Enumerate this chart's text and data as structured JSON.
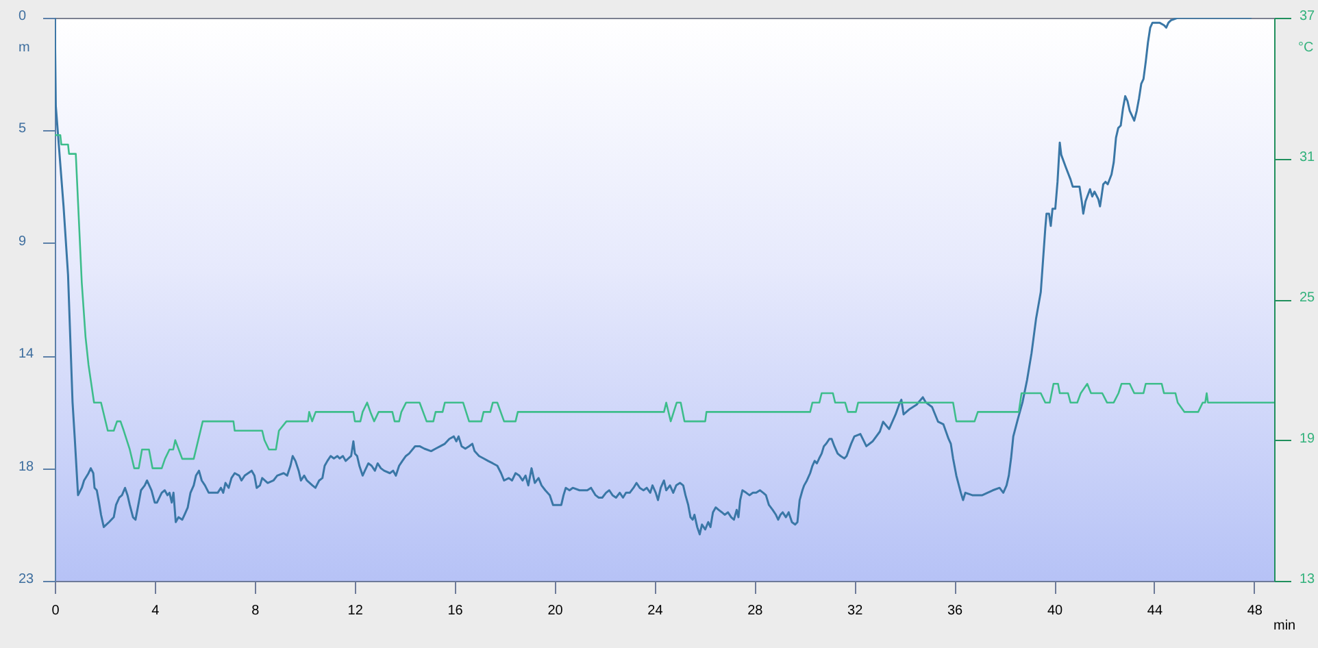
{
  "chart_data": {
    "type": "line",
    "xlabel": "min",
    "ylabel": "m",
    "y2label": "°C",
    "xlim": [
      0,
      48.8
    ],
    "xticks": [
      0,
      4,
      8,
      12,
      16,
      20,
      24,
      28,
      32,
      36,
      40,
      44,
      48
    ],
    "ylim": [
      23,
      0
    ],
    "yticks": [
      0,
      {
        "value": 4.6,
        "label": "5"
      },
      {
        "value": 9.2,
        "label": "9"
      },
      {
        "value": 13.8,
        "label": "14"
      },
      {
        "value": 18.4,
        "label": "18"
      },
      23
    ],
    "y2lim": [
      13,
      37
    ],
    "y2ticks": [
      13,
      19,
      25,
      31,
      37
    ],
    "series": [
      {
        "color": "#3a77a6",
        "x": [
          0,
          0.04,
          0.35,
          0.53,
          0.71,
          0.8,
          0.93,
          1.08,
          1.17,
          1.35,
          1.44,
          1.54,
          1.59,
          1.68,
          1.77,
          1.85,
          1.96,
          2.17,
          2.36,
          2.45,
          2.58,
          2.69,
          2.81,
          2.91,
          3.0,
          3.13,
          3.23,
          3.36,
          3.45,
          3.6,
          3.69,
          3.87,
          4.0,
          4.09,
          4.28,
          4.4,
          4.51,
          4.59,
          4.68,
          4.75,
          4.84,
          4.95,
          5.1,
          5.19,
          5.32,
          5.43,
          5.56,
          5.65,
          5.77,
          5.88,
          6.01,
          6.16,
          6.34,
          6.52,
          6.65,
          6.74,
          6.83,
          6.96,
          7.07,
          7.2,
          7.38,
          7.47,
          7.6,
          7.88,
          7.99,
          8.08,
          8.21,
          8.3,
          8.52,
          8.75,
          8.9,
          9.16,
          9.3,
          9.43,
          9.52,
          9.63,
          9.76,
          9.85,
          9.98,
          10.09,
          10.31,
          10.43,
          10.58,
          10.71,
          10.8,
          10.91,
          11.04,
          11.17,
          11.31,
          11.4,
          11.53,
          11.64,
          11.86,
          11.95,
          12.01,
          12.1,
          12.19,
          12.32,
          12.41,
          12.55,
          12.68,
          12.81,
          12.92,
          13.05,
          13.18,
          13.41,
          13.54,
          13.65,
          13.78,
          13.91,
          14.05,
          14.18,
          14.42,
          14.6,
          14.79,
          15.06,
          15.24,
          15.43,
          15.61,
          15.79,
          15.97,
          16.07,
          16.16,
          16.28,
          16.43,
          16.58,
          16.71,
          16.8,
          16.98,
          17.16,
          17.34,
          17.53,
          17.71,
          17.86,
          17.98,
          18.17,
          18.3,
          18.44,
          18.59,
          18.72,
          18.84,
          18.95,
          19.08,
          19.21,
          19.36,
          19.48,
          19.63,
          19.81,
          19.94,
          20.27,
          20.36,
          20.45,
          20.6,
          20.73,
          21.0,
          21.31,
          21.46,
          21.64,
          21.77,
          21.91,
          22.06,
          22.19,
          22.32,
          22.46,
          22.61,
          22.74,
          22.86,
          23.01,
          23.16,
          23.28,
          23.41,
          23.56,
          23.69,
          23.83,
          23.92,
          24.05,
          24.14,
          24.25,
          24.38,
          24.47,
          24.62,
          24.75,
          24.87,
          25.02,
          25.15,
          25.24,
          25.35,
          25.44,
          25.53,
          25.6,
          25.71,
          25.81,
          25.9,
          26.03,
          26.15,
          26.24,
          26.34,
          26.45,
          26.57,
          26.7,
          26.81,
          26.94,
          27.07,
          27.18,
          27.29,
          27.36,
          27.43,
          27.52,
          27.67,
          27.8,
          27.94,
          28.07,
          28.22,
          28.35,
          28.46,
          28.58,
          28.73,
          28.86,
          28.95,
          29.04,
          29.13,
          29.26,
          29.37,
          29.5,
          29.63,
          29.72,
          29.81,
          29.92,
          29.99,
          30.1,
          30.23,
          30.32,
          30.41,
          30.5,
          30.59,
          30.69,
          30.78,
          30.87,
          31.0,
          31.09,
          31.2,
          31.33,
          31.45,
          31.6,
          31.69,
          31.87,
          32.0,
          32.24,
          32.48,
          32.73,
          33.02,
          33.15,
          33.39,
          33.65,
          33.79,
          33.88,
          33.97,
          34.19,
          34.49,
          34.74,
          34.85,
          35.11,
          35.35,
          35.56,
          35.77,
          35.86,
          35.95,
          36.08,
          36.26,
          36.35,
          36.44,
          36.72,
          37.12,
          37.54,
          37.81,
          37.96,
          38.09,
          38.18,
          38.27,
          38.36,
          38.54,
          38.73,
          38.91,
          39.09,
          39.27,
          39.46,
          39.55,
          39.64,
          39.69,
          39.79,
          39.86,
          39.93,
          40.04,
          40.13,
          40.22,
          40.28,
          40.46,
          40.65,
          40.74,
          40.92,
          41.01,
          41.1,
          41.16,
          41.25,
          41.43,
          41.52,
          41.61,
          41.76,
          41.83,
          41.89,
          41.96,
          42.05,
          42.14,
          42.29,
          42.38,
          42.47,
          42.56,
          42.66,
          42.75,
          42.84,
          42.93,
          43.02,
          43.11,
          43.2,
          43.3,
          43.39,
          43.48,
          43.57,
          43.66,
          43.75,
          43.84,
          43.93,
          44.21,
          44.39,
          44.48,
          44.57,
          44.67,
          44.94,
          47.86
        ],
        "values": [
          0,
          3.6,
          7.7,
          10.5,
          15.7,
          17.2,
          19.5,
          19.2,
          18.9,
          18.6,
          18.4,
          18.6,
          19.2,
          19.3,
          19.8,
          20.3,
          20.8,
          20.6,
          20.4,
          19.9,
          19.6,
          19.5,
          19.2,
          19.5,
          19.9,
          20.4,
          20.5,
          19.8,
          19.3,
          19.1,
          18.9,
          19.3,
          19.8,
          19.8,
          19.4,
          19.3,
          19.5,
          19.4,
          19.8,
          19.4,
          20.6,
          20.4,
          20.5,
          20.3,
          20.0,
          19.4,
          19.1,
          18.7,
          18.5,
          18.9,
          19.1,
          19.4,
          19.4,
          19.4,
          19.2,
          19.4,
          19.0,
          19.2,
          18.8,
          18.6,
          18.7,
          18.9,
          18.7,
          18.5,
          18.7,
          19.2,
          19.1,
          18.8,
          19.0,
          18.9,
          18.7,
          18.6,
          18.7,
          18.3,
          17.9,
          18.1,
          18.5,
          18.9,
          18.7,
          18.9,
          19.1,
          19.2,
          18.9,
          18.8,
          18.3,
          18.1,
          17.9,
          18.0,
          17.9,
          18.0,
          17.9,
          18.1,
          17.9,
          17.3,
          17.8,
          17.9,
          18.3,
          18.7,
          18.5,
          18.2,
          18.3,
          18.5,
          18.2,
          18.4,
          18.5,
          18.6,
          18.5,
          18.7,
          18.3,
          18.1,
          17.9,
          17.8,
          17.5,
          17.5,
          17.6,
          17.7,
          17.6,
          17.5,
          17.4,
          17.2,
          17.1,
          17.3,
          17.1,
          17.5,
          17.6,
          17.5,
          17.4,
          17.7,
          17.9,
          18.0,
          18.1,
          18.2,
          18.3,
          18.6,
          18.9,
          18.8,
          18.9,
          18.6,
          18.7,
          18.9,
          18.7,
          19.1,
          18.4,
          19.0,
          18.8,
          19.1,
          19.3,
          19.5,
          19.9,
          19.9,
          19.5,
          19.2,
          19.3,
          19.2,
          19.3,
          19.3,
          19.2,
          19.5,
          19.6,
          19.6,
          19.4,
          19.3,
          19.5,
          19.6,
          19.4,
          19.6,
          19.4,
          19.4,
          19.2,
          19.0,
          19.2,
          19.3,
          19.2,
          19.4,
          19.1,
          19.4,
          19.7,
          19.2,
          18.9,
          19.3,
          19.1,
          19.4,
          19.1,
          19.0,
          19.1,
          19.5,
          19.9,
          20.4,
          20.5,
          20.3,
          20.8,
          21.1,
          20.7,
          20.9,
          20.6,
          20.8,
          20.2,
          20.0,
          20.1,
          20.2,
          20.3,
          20.2,
          20.4,
          20.5,
          20.1,
          20.4,
          19.7,
          19.3,
          19.4,
          19.5,
          19.4,
          19.4,
          19.3,
          19.4,
          19.5,
          19.9,
          20.1,
          20.3,
          20.5,
          20.3,
          20.2,
          20.4,
          20.2,
          20.6,
          20.7,
          20.6,
          19.7,
          19.3,
          19.1,
          18.9,
          18.6,
          18.3,
          18.1,
          18.2,
          18.0,
          17.8,
          17.5,
          17.4,
          17.2,
          17.2,
          17.5,
          17.8,
          17.9,
          18.0,
          17.9,
          17.4,
          17.1,
          17.0,
          17.5,
          17.3,
          16.9,
          16.5,
          16.8,
          16.2,
          15.8,
          15.6,
          16.2,
          16.0,
          15.8,
          15.5,
          15.7,
          15.9,
          16.5,
          16.6,
          17.2,
          17.4,
          18.0,
          18.7,
          19.4,
          19.7,
          19.4,
          19.5,
          19.5,
          19.3,
          19.2,
          19.4,
          19.1,
          18.7,
          18.0,
          17.1,
          16.4,
          15.7,
          14.8,
          13.7,
          12.3,
          11.2,
          9.9,
          8.6,
          8.0,
          8.0,
          8.5,
          7.8,
          7.8,
          6.7,
          5.1,
          5.6,
          6.1,
          6.6,
          6.9,
          6.9,
          6.9,
          7.5,
          8.0,
          7.5,
          7.0,
          7.3,
          7.1,
          7.4,
          7.7,
          7.3,
          6.8,
          6.7,
          6.8,
          6.4,
          5.9,
          4.9,
          4.5,
          4.4,
          3.7,
          3.2,
          3.4,
          3.8,
          4.0,
          4.2,
          3.8,
          3.3,
          2.7,
          2.5,
          1.8,
          1.0,
          0.4,
          0.2,
          0.2,
          0.3,
          0.4,
          0.2,
          0.1,
          0,
          0
        ]
      },
      {
        "color": "#3dbd8b",
        "axis": "y2",
        "x": [
          0,
          0.22,
          0.26,
          0.53,
          0.57,
          0.84,
          1.08,
          1.23,
          1.35,
          1.57,
          1.85,
          2.12,
          2.36,
          2.49,
          2.63,
          2.76,
          3.0,
          3.18,
          3.36,
          3.49,
          3.77,
          3.91,
          4.28,
          4.41,
          4.59,
          4.74,
          4.82,
          4.96,
          5.1,
          5.56,
          5.92,
          7.15,
          7.2,
          8.3,
          8.39,
          8.57,
          8.85,
          8.97,
          9.27,
          10.13,
          10.18,
          10.3,
          10.44,
          11.95,
          12.01,
          12.23,
          12.32,
          12.5,
          12.63,
          12.78,
          12.96,
          13.51,
          13.6,
          13.78,
          13.87,
          14.06,
          14.6,
          14.88,
          15.15,
          15.24,
          15.52,
          15.61,
          16.34,
          16.58,
          17.07,
          17.16,
          17.43,
          17.53,
          17.71,
          17.98,
          18.44,
          18.53,
          24.38,
          24.47,
          24.65,
          24.89,
          25.05,
          25.2,
          26.03,
          26.08,
          30.23,
          30.32,
          30.6,
          30.69,
          31.14,
          31.23,
          31.63,
          31.74,
          32.06,
          32.15,
          35.95,
          36.08,
          36.81,
          36.94,
          38.58,
          38.69,
          39.46,
          39.64,
          39.82,
          39.97,
          40.15,
          40.22,
          40.55,
          40.65,
          40.92,
          41.06,
          41.32,
          41.47,
          41.92,
          42.11,
          42.38,
          42.57,
          42.69,
          43.02,
          43.2,
          43.57,
          43.66,
          44.3,
          44.39,
          44.85,
          44.94,
          45.21,
          45.76,
          45.94,
          46.04,
          46.1,
          46.15,
          48.78
        ],
        "values": [
          32.0,
          32.0,
          31.6,
          31.6,
          31.2,
          31.2,
          25.7,
          23.4,
          22.2,
          20.6,
          20.6,
          19.4,
          19.4,
          19.8,
          19.8,
          19.4,
          18.6,
          17.8,
          17.8,
          18.6,
          18.6,
          17.8,
          17.8,
          18.2,
          18.6,
          18.6,
          19.0,
          18.6,
          18.2,
          18.2,
          19.8,
          19.8,
          19.4,
          19.4,
          19.0,
          18.6,
          18.6,
          19.4,
          19.8,
          19.8,
          20.2,
          19.8,
          20.2,
          20.2,
          19.8,
          19.8,
          20.2,
          20.6,
          20.2,
          19.8,
          20.2,
          20.2,
          19.8,
          19.8,
          20.2,
          20.6,
          20.6,
          19.8,
          19.8,
          20.2,
          20.2,
          20.6,
          20.6,
          19.8,
          19.8,
          20.2,
          20.2,
          20.6,
          20.6,
          19.8,
          19.8,
          20.2,
          20.2,
          20.6,
          19.8,
          20.6,
          20.6,
          19.8,
          19.8,
          20.2,
          20.2,
          20.6,
          20.6,
          21.0,
          21.0,
          20.6,
          20.6,
          20.2,
          20.2,
          20.6,
          20.6,
          19.8,
          19.8,
          20.2,
          20.2,
          21.0,
          21.0,
          20.6,
          20.6,
          21.4,
          21.4,
          21.0,
          21.0,
          20.6,
          20.6,
          21.0,
          21.4,
          21.0,
          21.0,
          20.6,
          20.6,
          21.0,
          21.4,
          21.4,
          21.0,
          21.0,
          21.4,
          21.4,
          21.0,
          21.0,
          20.6,
          20.2,
          20.2,
          20.6,
          20.6,
          21.0,
          20.6,
          20.6
        ]
      }
    ]
  }
}
